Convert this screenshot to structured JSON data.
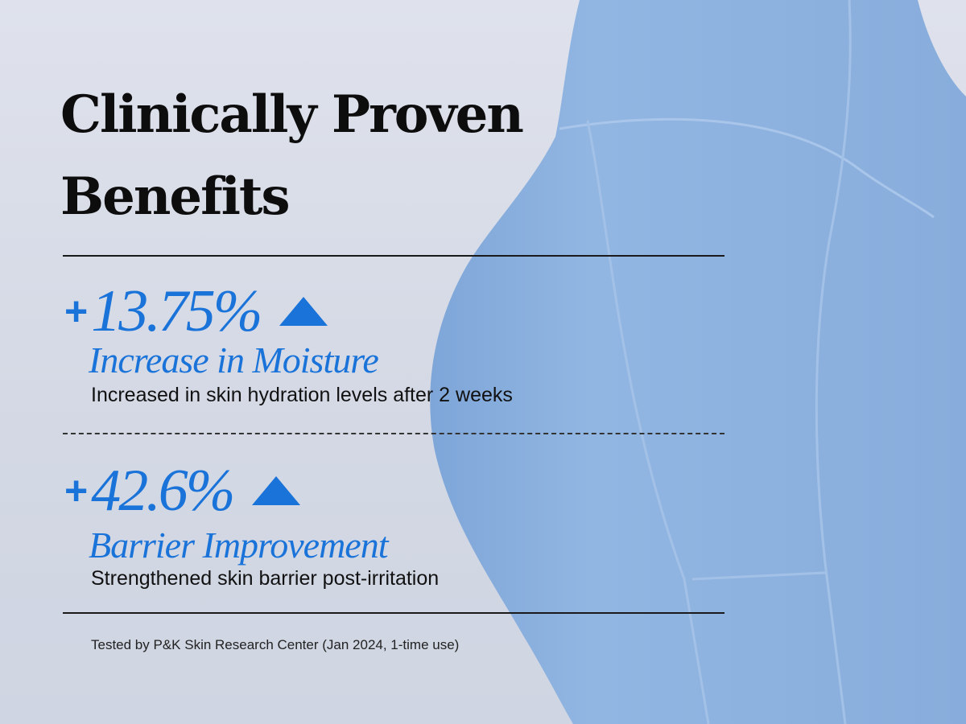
{
  "title": "Clinically Proven Benefits",
  "title_lines": [
    "Clinically Proven",
    "Benefits"
  ],
  "stats": [
    {
      "sign": "+",
      "value": "13.75%",
      "label": "Increase in Moisture",
      "description": "Increased in skin hydration levels after 2 weeks",
      "trend_icon": "triangle-up-icon"
    },
    {
      "sign": "+",
      "value": "42.6%",
      "label": "Barrier Improvement",
      "description": "Strengthened skin barrier post-irritation",
      "trend_icon": "triangle-up-icon"
    }
  ],
  "footnote": "Tested by P&K Skin Research Center (Jan 2024, 1-time use)",
  "colors": {
    "accent": "#1a73d9",
    "background": "#d8dce7",
    "product": "#8fb3df"
  }
}
